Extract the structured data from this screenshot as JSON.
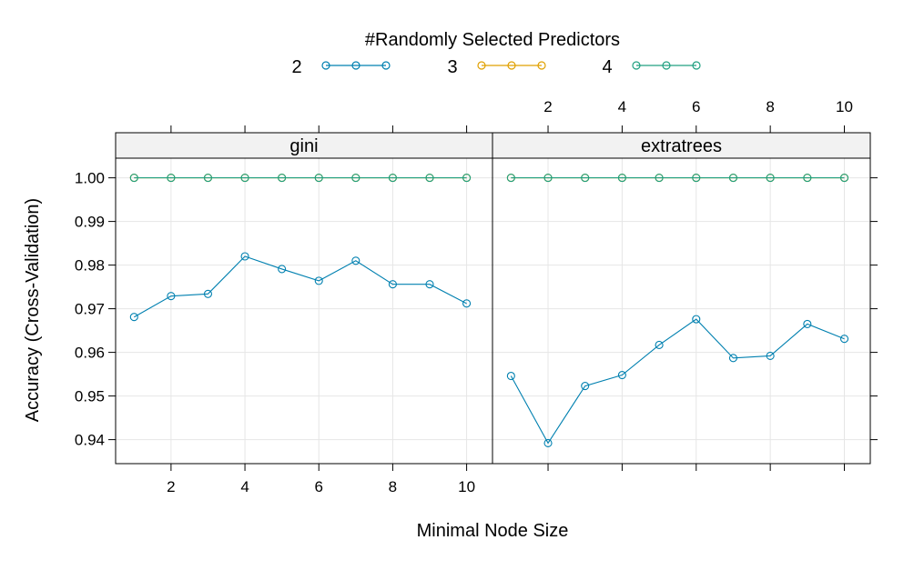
{
  "chart_data": {
    "type": "line",
    "legend": {
      "title": "#Randomly Selected Predictors",
      "placement": "top",
      "entries": [
        {
          "label": "2",
          "color": "#0080b0"
        },
        {
          "label": "3",
          "color": "#e0a000"
        },
        {
          "label": "4",
          "color": "#20a080"
        }
      ]
    },
    "xlabel": "Minimal Node Size",
    "ylabel": "Accuracy (Cross-Validation)",
    "xlim": [
      0.5,
      10.7
    ],
    "ylim": [
      0.9345,
      1.0045
    ],
    "xticks": [
      2,
      4,
      6,
      8,
      10
    ],
    "xtick_labels": [
      "2",
      "4",
      "6",
      "8",
      "10"
    ],
    "yticks": [
      0.94,
      0.95,
      0.96,
      0.97,
      0.98,
      0.99,
      1.0
    ],
    "ytick_labels": [
      "0.94",
      "0.95",
      "0.96",
      "0.97",
      "0.98",
      "0.99",
      "1.00"
    ],
    "grid": true,
    "panels": [
      {
        "strip": "gini",
        "x": [
          1,
          2,
          3,
          4,
          5,
          6,
          7,
          8,
          9,
          10
        ],
        "series": [
          {
            "name": "2",
            "values": [
              0.9681,
              0.9729,
              0.9734,
              0.982,
              0.9791,
              0.9764,
              0.981,
              0.9756,
              0.9756,
              0.9712
            ]
          },
          {
            "name": "3",
            "values": [
              1.0,
              1.0,
              1.0,
              1.0,
              1.0,
              1.0,
              1.0,
              1.0,
              1.0,
              1.0
            ]
          },
          {
            "name": "4",
            "values": [
              1.0,
              1.0,
              1.0,
              1.0,
              1.0,
              1.0,
              1.0,
              1.0,
              1.0,
              1.0
            ]
          }
        ]
      },
      {
        "strip": "extratrees",
        "x": [
          1,
          2,
          3,
          4,
          5,
          6,
          7,
          8,
          9,
          10
        ],
        "series": [
          {
            "name": "2",
            "values": [
              0.9546,
              0.9392,
              0.9523,
              0.9548,
              0.9617,
              0.9676,
              0.9587,
              0.9592,
              0.9665,
              0.9631
            ]
          },
          {
            "name": "3",
            "values": [
              1.0,
              1.0,
              1.0,
              1.0,
              1.0,
              1.0,
              1.0,
              1.0,
              1.0,
              1.0
            ]
          },
          {
            "name": "4",
            "values": [
              1.0,
              1.0,
              1.0,
              1.0,
              1.0,
              1.0,
              1.0,
              1.0,
              1.0,
              1.0
            ]
          }
        ]
      }
    ]
  }
}
